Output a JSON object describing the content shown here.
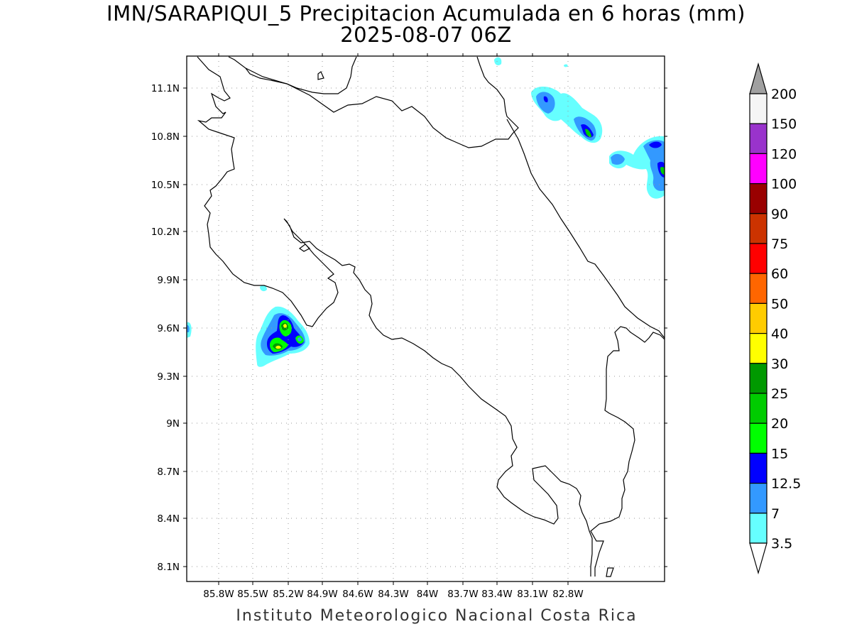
{
  "title": {
    "line1": "IMN/SARAPIQUI_5 Precipitacion Acumulada en 6 horas (mm)",
    "line2": "2025-08-07 06Z"
  },
  "footer": "Instituto Meteorologico Nacional Costa Rica",
  "map": {
    "x_ticks": [
      "85.8W",
      "85.5W",
      "85.2W",
      "84.9W",
      "84.6W",
      "84.3W",
      "84W",
      "83.7W",
      "83.4W",
      "83.1W",
      "82.8W"
    ],
    "y_ticks": [
      "11.1N",
      "10.8N",
      "10.5N",
      "10.2N",
      "9.9N",
      "9.6N",
      "9.3N",
      "9N",
      "8.7N",
      "8.4N",
      "8.1N"
    ],
    "grid": "dotted",
    "coastline_color": "#000000"
  },
  "colorbar": {
    "labels": [
      "200",
      "150",
      "120",
      "100",
      "90",
      "75",
      "60",
      "50",
      "40",
      "30",
      "25",
      "20",
      "15",
      "12.5",
      "7",
      "3.5"
    ],
    "colors": [
      "#f5f5f5",
      "#9933cc",
      "#ff00ff",
      "#990000",
      "#cc3300",
      "#ff0000",
      "#ff6600",
      "#ffcc00",
      "#ffff00",
      "#009900",
      "#00cc00",
      "#00ff00",
      "#0000ff",
      "#3399ff",
      "#66ffff"
    ],
    "over_color": "#a0a0a0",
    "under_color": "#ffffff"
  }
}
